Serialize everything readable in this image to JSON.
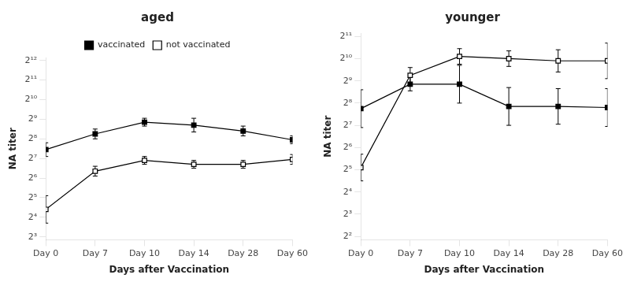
{
  "chart_data": [
    {
      "type": "line",
      "title": "aged",
      "xlabel": "Days after Vaccination",
      "ylabel": "NA titer",
      "categories": [
        "Day 0",
        "Day 7",
        "Day 10",
        "Day 14",
        "Day 28",
        "Day 60"
      ],
      "series": [
        {
          "name": "vaccinated",
          "color": "#000000",
          "marker": "square",
          "values": [
            7.45,
            8.25,
            8.85,
            8.7,
            8.4,
            7.95
          ],
          "errors": [
            0.35,
            0.25,
            0.2,
            0.35,
            0.25,
            0.2
          ]
        },
        {
          "name": "not vaccinated",
          "color": "#000000",
          "marker": "square_open",
          "values": [
            4.4,
            6.35,
            6.9,
            6.7,
            6.7,
            6.95
          ],
          "errors": [
            0.7,
            0.25,
            0.2,
            0.2,
            0.2,
            0.25
          ]
        }
      ],
      "ylim": [
        2.85,
        12.15
      ],
      "yticks": [
        {
          "value": 3,
          "label": "2³"
        },
        {
          "value": 4,
          "label": "2⁴"
        },
        {
          "value": 5,
          "label": "2⁵"
        },
        {
          "value": 6,
          "label": "2⁶"
        },
        {
          "value": 7,
          "label": "2⁷"
        },
        {
          "value": 8,
          "label": "2⁸"
        },
        {
          "value": 9,
          "label": "2⁹"
        },
        {
          "value": 10,
          "label": "2¹⁰"
        },
        {
          "value": 11,
          "label": "2¹¹"
        },
        {
          "value": 12,
          "label": "2¹²"
        }
      ],
      "grid": false,
      "legend": "top"
    },
    {
      "type": "line",
      "title": "younger",
      "xlabel": "Days after Vaccination",
      "ylabel": "NA titer",
      "categories": [
        "Day 0",
        "Day 7",
        "Day 10",
        "Day 14",
        "Day 28",
        "Day 60"
      ],
      "series": [
        {
          "name": "vaccinated",
          "color": "#000000",
          "marker": "square",
          "values": [
            7.75,
            8.85,
            8.85,
            7.85,
            7.85,
            7.8
          ],
          "errors": [
            0.85,
            0.3,
            0.85,
            0.85,
            0.8,
            0.85
          ]
        },
        {
          "name": "not vaccinated",
          "color": "#000000",
          "marker": "square_open",
          "values": [
            5.1,
            9.25,
            10.1,
            10.0,
            9.9,
            9.9
          ],
          "errors": [
            0.6,
            0.35,
            0.35,
            0.35,
            0.5,
            0.8
          ]
        }
      ],
      "ylim": [
        1.85,
        11.15
      ],
      "yticks": [
        {
          "value": 2,
          "label": "2²"
        },
        {
          "value": 3,
          "label": "2³"
        },
        {
          "value": 4,
          "label": "2⁴"
        },
        {
          "value": 5,
          "label": "2⁵"
        },
        {
          "value": 6,
          "label": "2⁶"
        },
        {
          "value": 7,
          "label": "2⁷"
        },
        {
          "value": 8,
          "label": "2⁸"
        },
        {
          "value": 9,
          "label": "2⁹"
        },
        {
          "value": 10,
          "label": "2¹⁰"
        },
        {
          "value": 11,
          "label": "2¹¹"
        }
      ],
      "grid": false
    }
  ]
}
